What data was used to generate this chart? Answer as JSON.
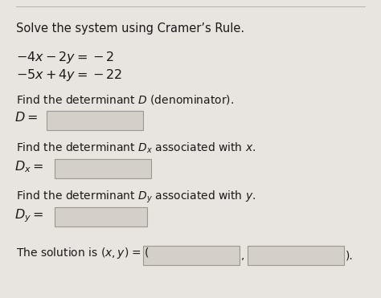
{
  "title": "Solve the system using Cramer’s Rule.",
  "eq1": "$-4x - 2y = -2$",
  "eq2": "$-5x + 4y = -22$",
  "find_D": "Find the determinant $D$ (denominator).",
  "label_D": "$D=$",
  "find_Dx": "Find the determinant $D_x$ associated with $x$.",
  "label_Dx": "$D_x=$",
  "find_Dy": "Find the determinant $D_y$ associated with $y$.",
  "label_Dy": "$D_y=$",
  "solution_prefix": "The solution is $(x, y)$ = (",
  "solution_end": ").",
  "bg_color": "#e8e4df",
  "box_fill": "#d4cfc9",
  "box_edge": "#999990",
  "text_color": "#1a1a1a",
  "title_fontsize": 10.5,
  "body_fontsize": 10,
  "math_fontsize": 11.5
}
